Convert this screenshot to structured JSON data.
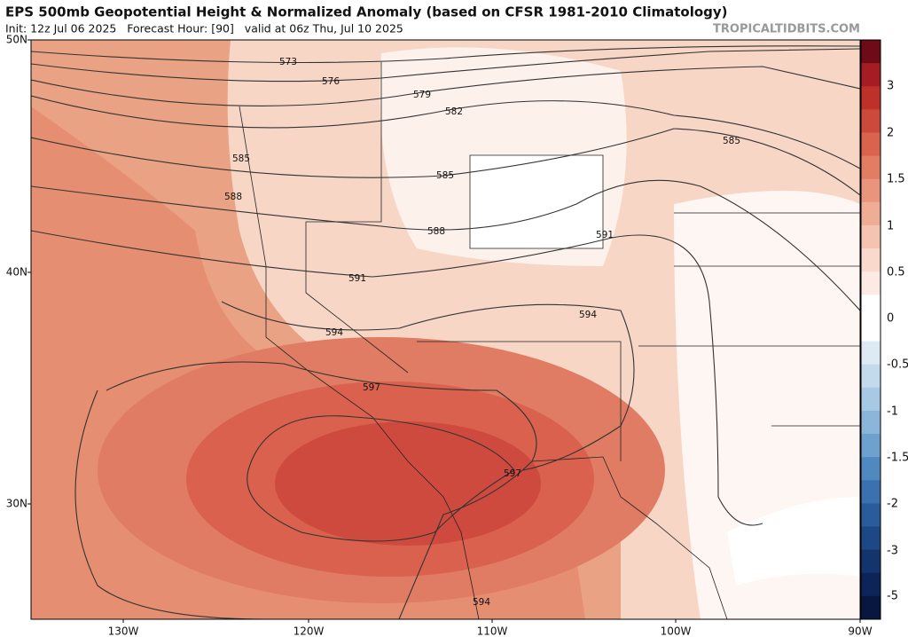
{
  "header": {
    "title": "EPS 500mb Geopotential Height & Normalized Anomaly (based on CFSR 1981-2010 Climatology)",
    "subtitle": "Init: 12z Jul 06 2025   Forecast Hour: [90]   valid at 06z Thu, Jul 10 2025",
    "credit": "TROPICALTIDBITS.COM"
  },
  "map": {
    "lat_labels": [
      "50N",
      "40N",
      "30N"
    ],
    "lon_labels": [
      "130W",
      "120W",
      "110W",
      "100W",
      "90W"
    ],
    "contour_labels": [
      573,
      576,
      579,
      582,
      585,
      585,
      585,
      588,
      588,
      591,
      591,
      594,
      594,
      594,
      597,
      597
    ]
  },
  "colorbar": {
    "labels": [
      3,
      2,
      1.5,
      1,
      0.5,
      0,
      -0.5,
      -1,
      -1.5,
      -2,
      -3,
      -5
    ]
  }
}
